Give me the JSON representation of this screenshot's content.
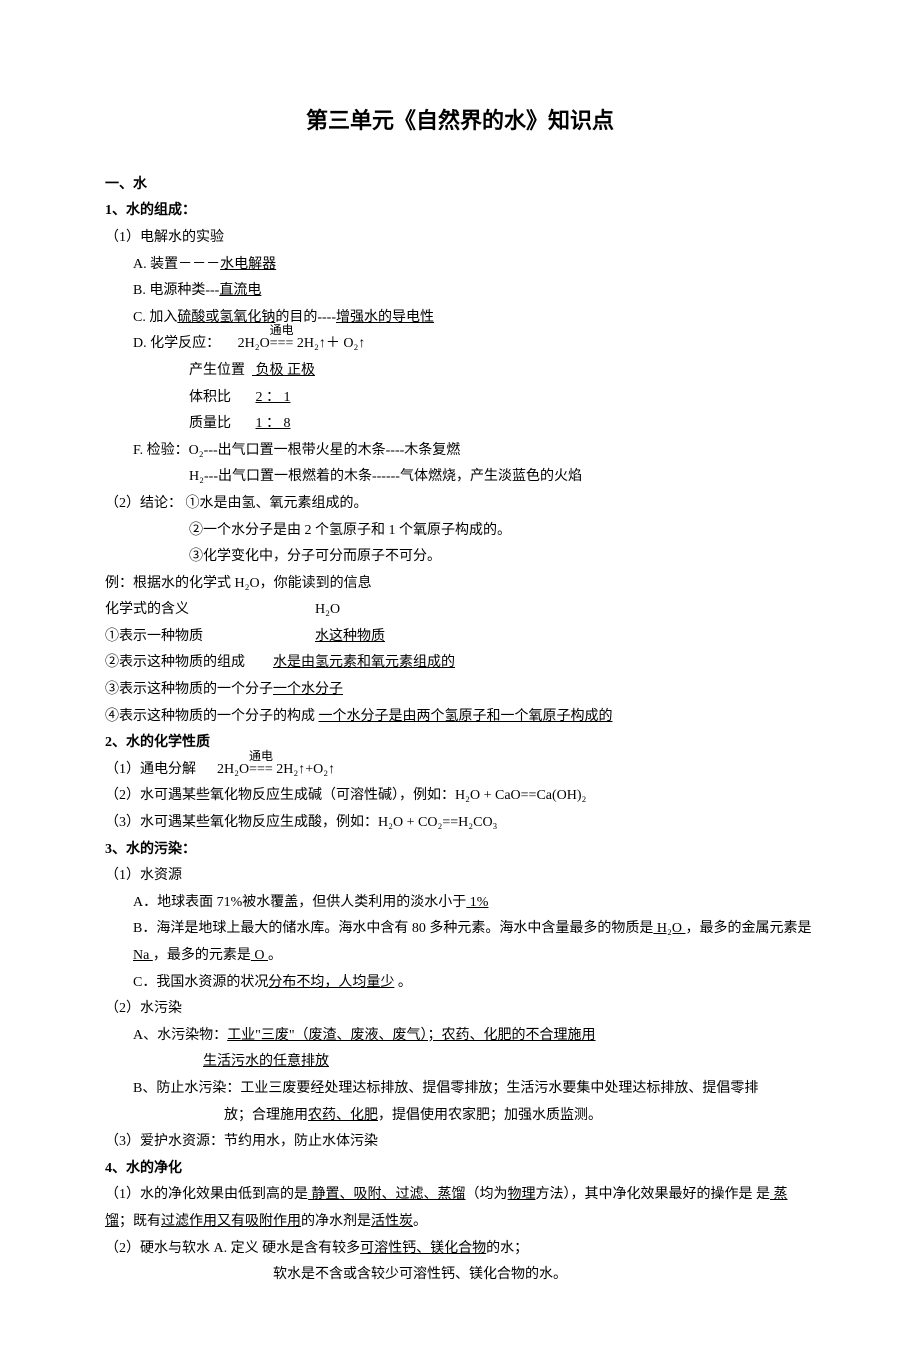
{
  "title": "第三单元《自然界的水》知识点",
  "s1": {
    "heading": "一、水",
    "h1": "1、水的组成：",
    "p1": "（1）电解水的实验",
    "a_pre": "A. 装置－－－",
    "a_u": "水电解器",
    "b_pre": "B. 电源种类---",
    "b_u": "直流电",
    "c_pre": "C. 加入",
    "c_u1": "硫酸或氢氧化钠",
    "c_mid": "的目的----",
    "c_u2": "增强水的导电性",
    "d_pre": "D. 化学反应：",
    "d_eq_left": "2H₂O",
    "d_over": "通电",
    "d_eq_right": " 2H₂↑＋ O₂↑",
    "d_row1_a": "产生位置",
    "d_row1_b": " 负极   正极",
    "d_row2_a": "体积比",
    "d_row2_b": "2 ： 1",
    "d_row3_a": "质量比",
    "d_row3_b": "1 ： 8 ",
    "f1": "F. 检验：O₂---出气口置一根带火星的木条----木条复燃",
    "f2": "H₂---出气口置一根燃着的木条------气体燃烧，产生淡蓝色的火焰",
    "p2": "（2）结论： ①水是由氢、氧元素组成的。",
    "p2b": "②一个水分子是由 2 个氢原子和 1 个氧原子构成的。",
    "p2c": "③化学变化中，分子可分而原子不可分。",
    "ex_l1": "例：根据水的化学式 H₂O，你能读到的信息",
    "ex_l2a": "化学式的含义",
    "ex_l2b": "H₂O",
    "ex_r1a": "①表示一种物质",
    "ex_r1b": "水这种物质",
    "ex_r2a": "②表示这种物质的组成",
    "ex_r2b": "水是由氢元素和氧元素组成的",
    "ex_r3a": "③表示这种物质的一个分子",
    "ex_r3b": "一个水分子",
    "ex_r4a": "④表示这种物质的一个分子的构成",
    "ex_r4b": "一个水分子是由两个氢原子和一个氧原子构成的"
  },
  "s2": {
    "heading": "2、水的化学性质",
    "l1_pre": "（1）通电分解",
    "l1_left": "2H₂O",
    "l1_over": "通电",
    "l1_right": " 2H₂↑+O₂↑",
    "l2": "（2）水可遇某些氧化物反应生成碱（可溶性碱），例如：H₂O + CaO==Ca(OH)₂",
    "l3": "（3）水可遇某些氧化物反应生成酸，例如：H₂O + CO₂==H₂CO₃"
  },
  "s3": {
    "heading": "3、水的污染：",
    "l1": "（1）水资源",
    "a_pre": "A．地球表面 71%被水覆盖，但供人类利用的淡水小于",
    "a_u": "  1% ",
    "b_pre": "B．海洋是地球上最大的储水库。海水中含有 80 多种元素。海水中含量最多的物质是",
    "b_u1": "  H₂O    ",
    "b_mid": "，最多的金属元素是",
    "b_u2": "  Na  ",
    "b_mid2": "，最多的元素是",
    "b_u3": " O ",
    "b_end": "。",
    "c_pre": "C．我国水资源的状况",
    "c_u": "分布不均，人均量少",
    "c_post": "                                  。",
    "l2": "（2）水污染",
    "pA_pre": "A、水污染物：",
    "pA_u1": "工业\"三废\"（废渣、废液、废气）；农药、化肥的不合理施用",
    "pA_u2": "生活污水的任意排放",
    "pB_a": "B、防止水污染：工业三废要经处理达标排放、提倡零排放；生活污水要集中处理达标排放、提倡零排",
    "pB_b": "放；合理施用",
    "pB_u": "农药、化肥",
    "pB_c": "，提倡使用农家肥；加强水质监测。",
    "l3": "（3）爱护水资源：节约用水，防止水体污染"
  },
  "s4": {
    "heading": "4、水的净化",
    "l1_a": "（1）水的净化效果由低到高的是",
    "l1_u1": " 静置、吸附、过滤、蒸馏",
    "l1_b": "（均为",
    "l1_u2": "物理",
    "l1_c": "方法），其中净化效果最好的操作是",
    "l1_u3": " 蒸馏",
    "l1_d": "；既有",
    "l1_u4": "过滤作用又有吸附作用",
    "l1_e": "的净水剂是",
    "l1_u5": "活性炭",
    "l1_f": "。",
    "l2_a": "（2）硬水与软水  A. 定义    硬水是含有较多",
    "l2_u": "可溶性钙、镁化合物",
    "l2_b": "的水；",
    "l2_c": "软水是不含或含较少可溶性钙、镁化合物的水。"
  }
}
